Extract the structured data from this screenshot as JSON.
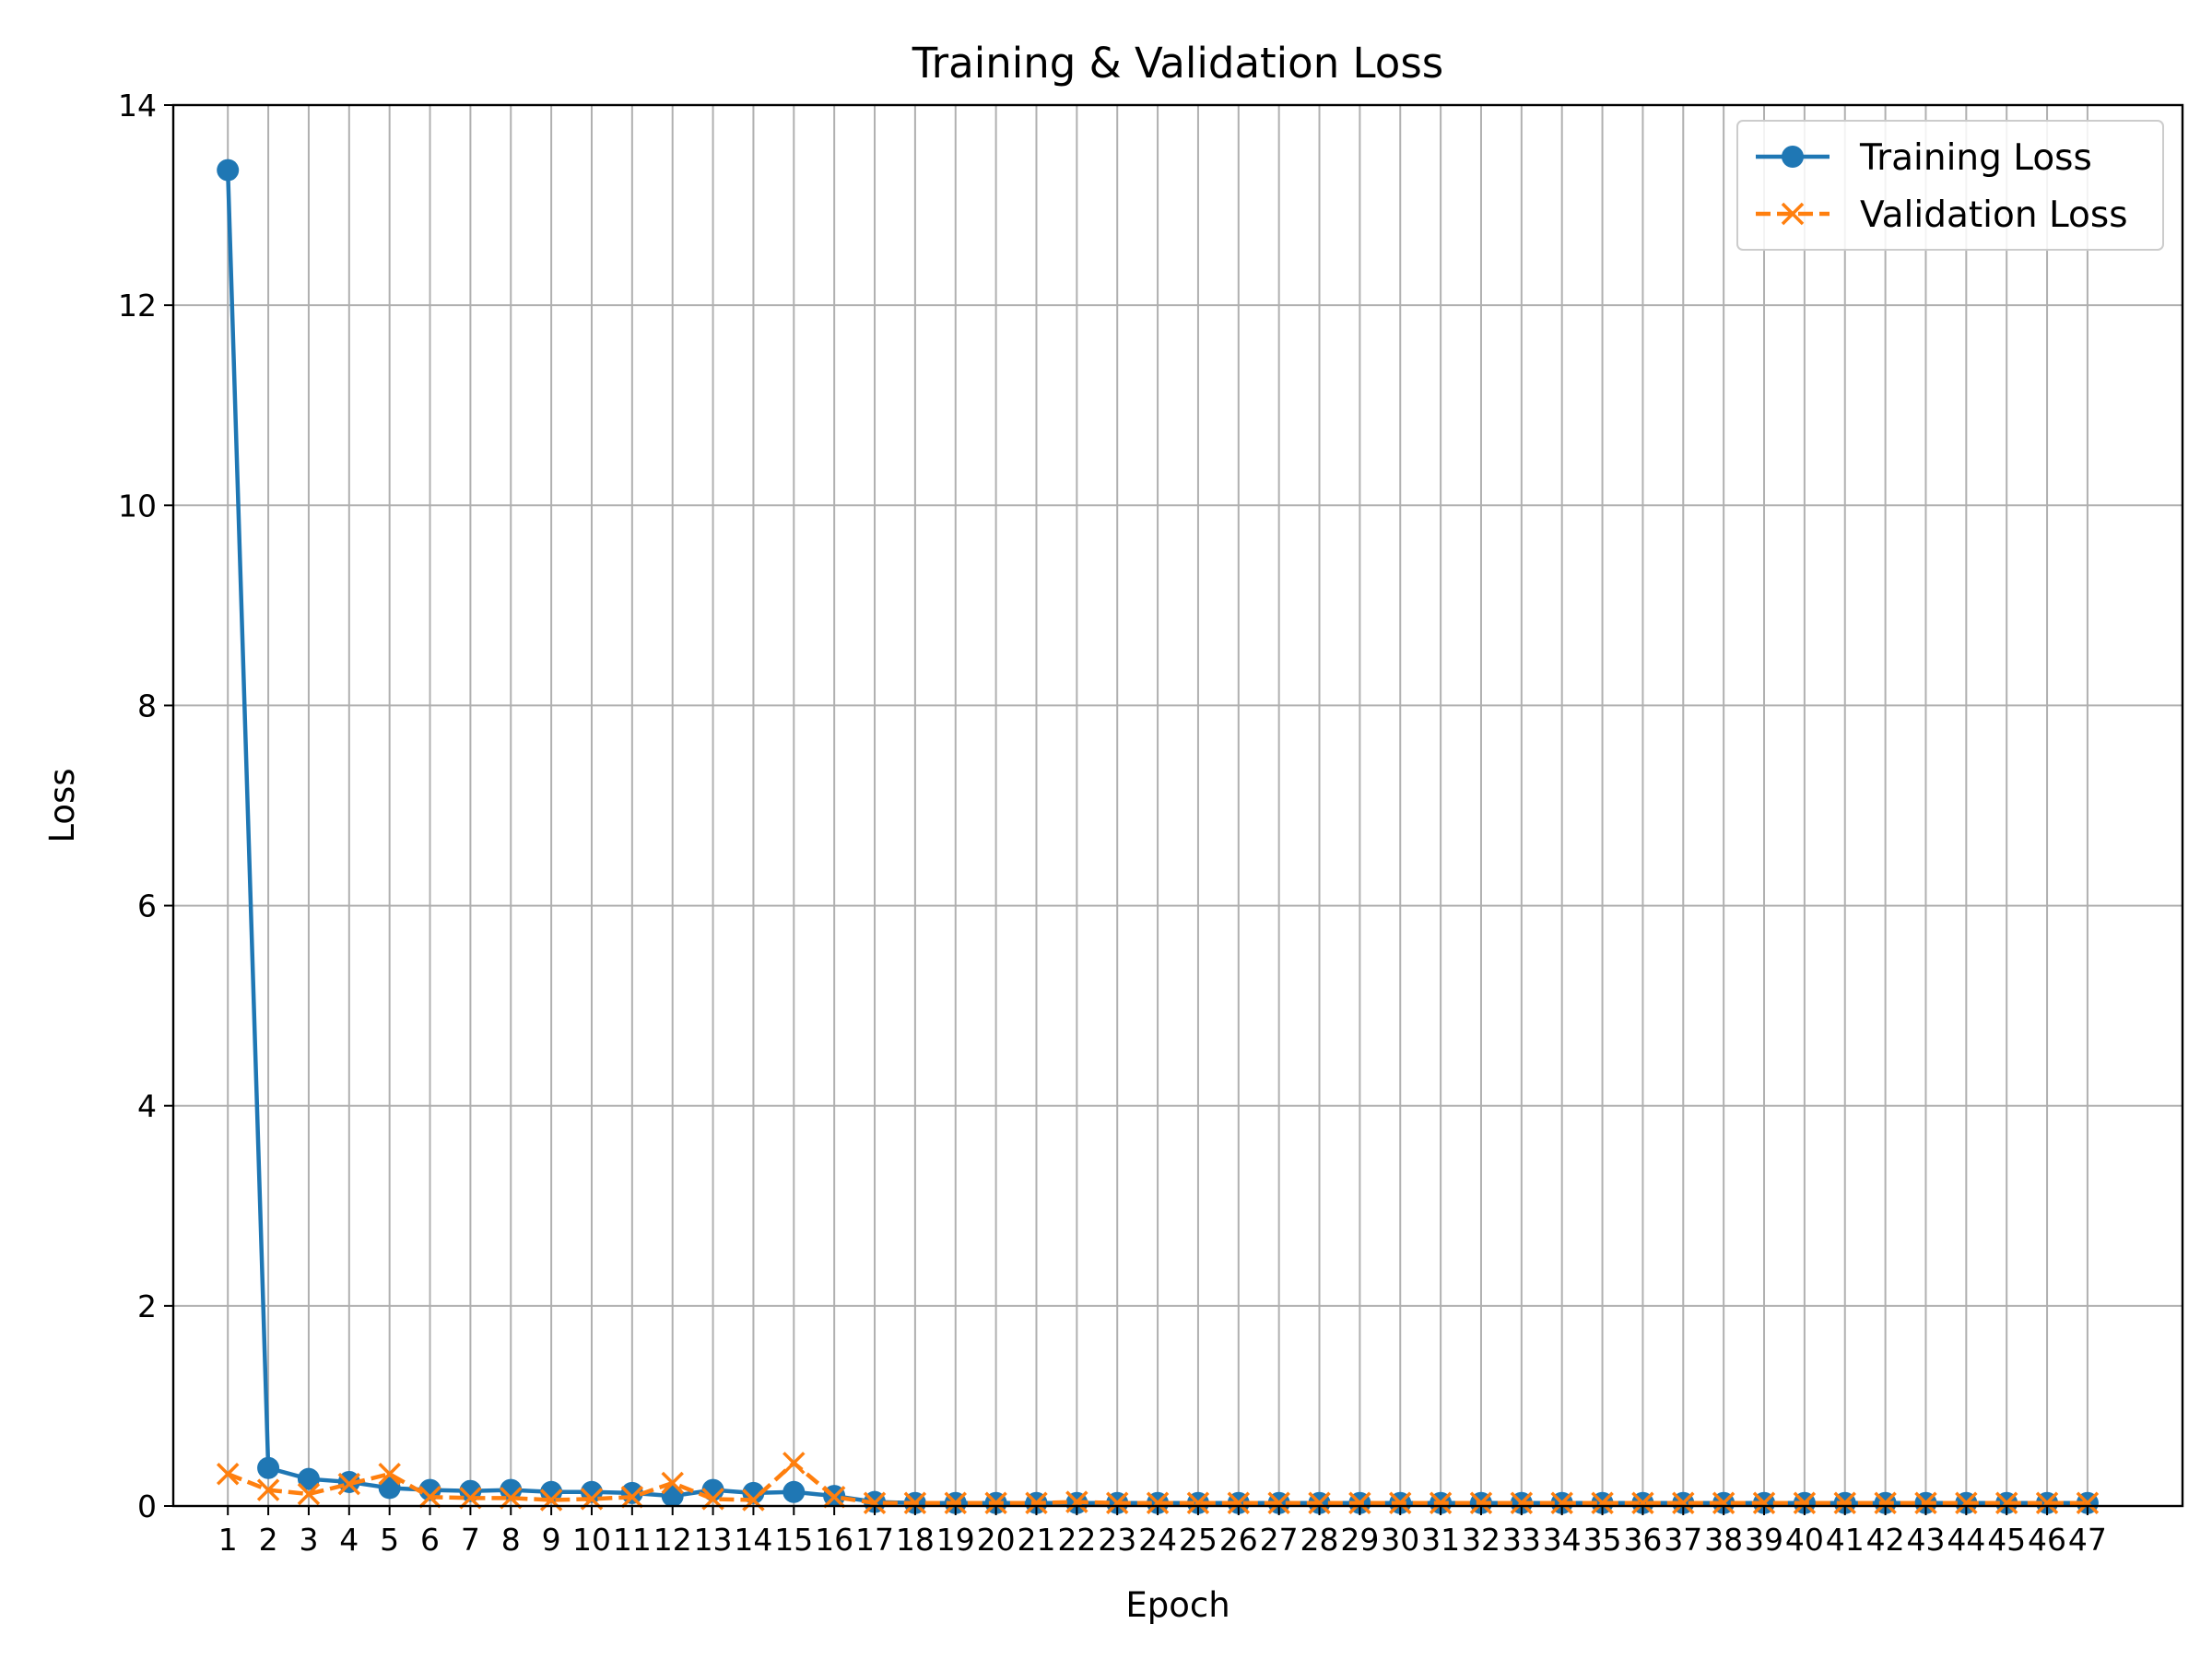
{
  "chart_data": {
    "type": "line",
    "title": "Training & Validation Loss",
    "xlabel": "Epoch",
    "ylabel": "Loss",
    "x": [
      1,
      2,
      3,
      4,
      5,
      6,
      7,
      8,
      9,
      10,
      11,
      12,
      13,
      14,
      15,
      16,
      17,
      18,
      19,
      20,
      21,
      22,
      23,
      24,
      25,
      26,
      27,
      28,
      29,
      30,
      31,
      32,
      33,
      34,
      35,
      36,
      37,
      38,
      39,
      40,
      41,
      42,
      43,
      44,
      45,
      46,
      47
    ],
    "xlim": [
      -0.35,
      49.35
    ],
    "ylim": [
      0,
      14
    ],
    "yticks": [
      0,
      2,
      4,
      6,
      8,
      10,
      12,
      14
    ],
    "grid": true,
    "legend_position": "top-right",
    "series": [
      {
        "name": "Training Loss",
        "color": "#1f77b4",
        "line_style": "solid",
        "marker": "circle",
        "values": [
          13.35,
          0.38,
          0.27,
          0.24,
          0.18,
          0.16,
          0.15,
          0.16,
          0.14,
          0.14,
          0.13,
          0.1,
          0.16,
          0.13,
          0.14,
          0.1,
          0.04,
          0.03,
          0.03,
          0.03,
          0.03,
          0.03,
          0.03,
          0.03,
          0.03,
          0.03,
          0.03,
          0.03,
          0.03,
          0.03,
          0.03,
          0.03,
          0.03,
          0.03,
          0.03,
          0.03,
          0.03,
          0.03,
          0.03,
          0.03,
          0.03,
          0.03,
          0.03,
          0.03,
          0.03,
          0.03,
          0.03
        ]
      },
      {
        "name": "Validation Loss",
        "color": "#ff7f0e",
        "line_style": "dashed",
        "marker": "x",
        "values": [
          0.32,
          0.16,
          0.12,
          0.22,
          0.32,
          0.09,
          0.08,
          0.08,
          0.06,
          0.07,
          0.09,
          0.23,
          0.07,
          0.06,
          0.43,
          0.09,
          0.03,
          0.03,
          0.03,
          0.03,
          0.03,
          0.04,
          0.03,
          0.03,
          0.03,
          0.03,
          0.03,
          0.03,
          0.03,
          0.03,
          0.03,
          0.03,
          0.03,
          0.03,
          0.03,
          0.03,
          0.03,
          0.03,
          0.03,
          0.03,
          0.03,
          0.03,
          0.03,
          0.03,
          0.03,
          0.03,
          0.03
        ]
      }
    ]
  }
}
